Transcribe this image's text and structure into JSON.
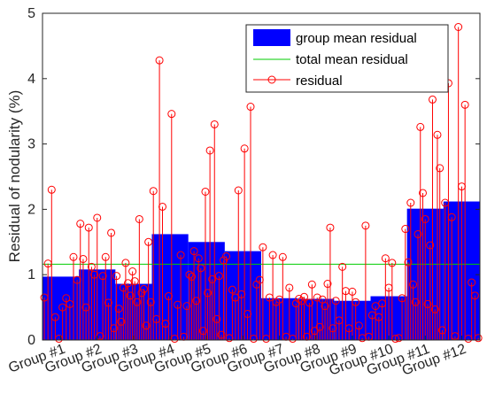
{
  "chart_data": {
    "type": "bar",
    "title": "",
    "xlabel": "",
    "ylabel": "Residual of nodularity (%)",
    "ylim": [
      0,
      5
    ],
    "yticks": [
      0,
      1,
      2,
      3,
      4,
      5
    ],
    "categories": [
      "Group #1",
      "Group #2",
      "Group #3",
      "Group #4",
      "Group #5",
      "Group #6",
      "Group #7",
      "Group #8",
      "Group #9",
      "Group #10",
      "Group #11",
      "Group #12"
    ],
    "grid": false,
    "legend_position": "top-right",
    "series": [
      {
        "name": "group mean residual",
        "kind": "bar",
        "color": "#0000ff",
        "values": [
          0.97,
          1.08,
          0.86,
          1.62,
          1.5,
          1.36,
          0.64,
          0.63,
          0.6,
          0.67,
          2.01,
          2.12
        ]
      },
      {
        "name": "total mean residual",
        "kind": "hline",
        "color": "#00cc00",
        "value": 1.16
      },
      {
        "name": "residual",
        "kind": "stem",
        "color": "#ff0000",
        "groups": [
          [
            0.65,
            1.17,
            2.3,
            0.35,
            0.02,
            0.5,
            0.64,
            0.55,
            1.27,
            0.92
          ],
          [
            1.78,
            1.24,
            0.5,
            1.72,
            1.12,
            1.0,
            1.87,
            0.06,
            0.98,
            1.27,
            0.57,
            1.64,
            0.18
          ],
          [
            0.98,
            0.48,
            0.28,
            0.8,
            1.18,
            0.87,
            0.68,
            1.05,
            0.9,
            0.58,
            1.85,
            0.72,
            0.78,
            0.22,
            1.5,
            0.58
          ],
          [
            2.28,
            0.32,
            4.28,
            2.04,
            0.25,
            0.67,
            3.46,
            0.02,
            0.54,
            1.3,
            0.05,
            0.52
          ],
          [
            1.0,
            0.97,
            1.36,
            0.6,
            1.25,
            1.1,
            0.14,
            2.27,
            0.72,
            2.9,
            0.93,
            3.3,
            0.32,
            0.98,
            0.08,
            1.22
          ],
          [
            1.28,
            0.03,
            0.77,
            0.65,
            2.29,
            0.7,
            2.93,
            0.4,
            3.57,
            0.02,
            0.85,
            0.92
          ],
          [
            1.42,
            0.02,
            0.65,
            1.3,
            0.58,
            0.62,
            1.27,
            0.05,
            0.8,
            0.02,
            0.56
          ],
          [
            0.63,
            0.6,
            0.66,
            0.05,
            0.57,
            0.85,
            0.14,
            0.65,
            0.2,
            0.62,
            0.52,
            0.86,
            1.72,
            0.18
          ],
          [
            0.6,
            0.3,
            1.12,
            0.75,
            0.18,
            0.74,
            0.58,
            0.22,
            0.03,
            1.75,
            0.05
          ],
          [
            0.38,
            0.52,
            0.35,
            0.56,
            1.25,
            0.8,
            1.18,
            0.02,
            0.03,
            0.64,
            1.7
          ],
          [
            1.19,
            2.1,
            0.85,
            0.58,
            1.62,
            3.26,
            2.25,
            1.85,
            0.55,
            1.45,
            3.68,
            0.47,
            3.14,
            2.63,
            0.15
          ],
          [
            2.1,
            3.93,
            1.88,
            0.06,
            4.79,
            2.35,
            3.6,
            0.02,
            0.88,
            0.68,
            0.03
          ]
        ]
      }
    ]
  }
}
